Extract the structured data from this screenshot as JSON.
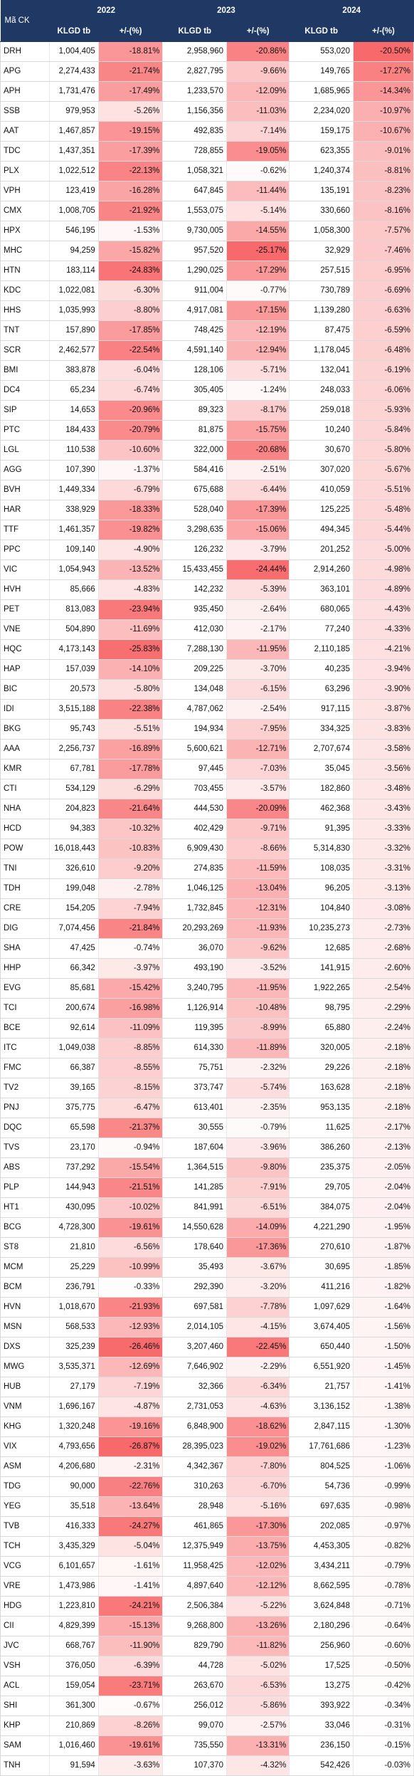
{
  "header": {
    "code_label": "Mã CK",
    "years": [
      "2022",
      "2023",
      "2024"
    ],
    "vol_label": "KLGD tb",
    "chg_label": "+/-(%)"
  },
  "heat": {
    "low": "#ffffff",
    "high": "#f8696b"
  },
  "rows": [
    [
      "DRH",
      "1,004,405",
      "-18.81%",
      "2,958,960",
      "-20.86%",
      "553,020",
      "-20.50%"
    ],
    [
      "APG",
      "2,274,433",
      "-21.74%",
      "2,827,795",
      "-9.66%",
      "149,765",
      "-17.27%"
    ],
    [
      "APH",
      "1,731,476",
      "-17.49%",
      "1,233,570",
      "-12.09%",
      "1,685,965",
      "-14.34%"
    ],
    [
      "SSB",
      "979,953",
      "-5.26%",
      "1,156,356",
      "-11.03%",
      "2,234,020",
      "-10.97%"
    ],
    [
      "AAT",
      "1,467,857",
      "-19.15%",
      "492,835",
      "-7.14%",
      "159,175",
      "-10.67%"
    ],
    [
      "TDC",
      "1,437,351",
      "-17.39%",
      "728,855",
      "-19.05%",
      "623,355",
      "-9.01%"
    ],
    [
      "PLX",
      "1,022,512",
      "-22.13%",
      "1,058,321",
      "-0.62%",
      "1,240,374",
      "-8.81%"
    ],
    [
      "VPH",
      "123,419",
      "-16.28%",
      "647,845",
      "-11.44%",
      "135,191",
      "-8.23%"
    ],
    [
      "CMX",
      "1,008,705",
      "-21.92%",
      "1,553,075",
      "-5.14%",
      "330,660",
      "-8.16%"
    ],
    [
      "HPX",
      "546,195",
      "-1.53%",
      "9,730,005",
      "-14.55%",
      "1,058,300",
      "-7.57%"
    ],
    [
      "MHC",
      "94,259",
      "-15.82%",
      "957,520",
      "-25.17%",
      "32,929",
      "-7.46%"
    ],
    [
      "HTN",
      "183,114",
      "-24.83%",
      "1,290,025",
      "-17.29%",
      "257,515",
      "-6.95%"
    ],
    [
      "KDC",
      "1,022,081",
      "-6.30%",
      "911,004",
      "-0.77%",
      "730,789",
      "-6.69%"
    ],
    [
      "HHS",
      "1,035,993",
      "-8.80%",
      "4,917,081",
      "-17.15%",
      "1,139,280",
      "-6.63%"
    ],
    [
      "TNT",
      "157,890",
      "-17.85%",
      "748,425",
      "-12.19%",
      "87,475",
      "-6.59%"
    ],
    [
      "SCR",
      "2,462,577",
      "-22.54%",
      "4,591,140",
      "-12.94%",
      "1,178,045",
      "-6.48%"
    ],
    [
      "BMI",
      "383,878",
      "-6.04%",
      "128,106",
      "-5.71%",
      "132,041",
      "-6.19%"
    ],
    [
      "DC4",
      "65,234",
      "-6.74%",
      "305,405",
      "-1.24%",
      "248,033",
      "-6.06%"
    ],
    [
      "SIP",
      "14,653",
      "-20.96%",
      "89,323",
      "-8.17%",
      "259,018",
      "-5.93%"
    ],
    [
      "PTC",
      "184,433",
      "-20.79%",
      "81,875",
      "-15.75%",
      "10,240",
      "-5.84%"
    ],
    [
      "LGL",
      "110,538",
      "-10.60%",
      "322,000",
      "-20.68%",
      "30,670",
      "-5.80%"
    ],
    [
      "AGG",
      "107,390",
      "-1.37%",
      "584,416",
      "-2.51%",
      "307,020",
      "-5.67%"
    ],
    [
      "BVH",
      "1,449,334",
      "-6.79%",
      "675,688",
      "-6.44%",
      "410,059",
      "-5.51%"
    ],
    [
      "HAR",
      "338,929",
      "-18.33%",
      "528,040",
      "-17.39%",
      "125,225",
      "-5.48%"
    ],
    [
      "TTF",
      "1,461,357",
      "-19.82%",
      "3,298,635",
      "-15.06%",
      "494,345",
      "-5.44%"
    ],
    [
      "PPC",
      "109,140",
      "-4.90%",
      "126,232",
      "-3.79%",
      "201,252",
      "-5.00%"
    ],
    [
      "VIC",
      "1,054,943",
      "-13.52%",
      "15,433,455",
      "-24.44%",
      "2,914,260",
      "-4.98%"
    ],
    [
      "HVH",
      "85,666",
      "-4.83%",
      "142,232",
      "-5.39%",
      "363,101",
      "-4.89%"
    ],
    [
      "PET",
      "813,083",
      "-23.94%",
      "935,450",
      "-2.64%",
      "680,065",
      "-4.43%"
    ],
    [
      "VNE",
      "504,890",
      "-11.69%",
      "412,030",
      "-2.17%",
      "77,240",
      "-4.33%"
    ],
    [
      "HQC",
      "4,173,143",
      "-25.83%",
      "7,288,130",
      "-11.95%",
      "2,110,185",
      "-4.21%"
    ],
    [
      "HAP",
      "157,039",
      "-14.10%",
      "209,225",
      "-3.70%",
      "40,235",
      "-3.94%"
    ],
    [
      "BIC",
      "20,573",
      "-5.80%",
      "134,048",
      "-6.15%",
      "63,296",
      "-3.90%"
    ],
    [
      "IDI",
      "3,515,188",
      "-22.38%",
      "4,787,062",
      "-2.54%",
      "917,115",
      "-3.87%"
    ],
    [
      "BKG",
      "95,743",
      "-5.51%",
      "194,934",
      "-7.95%",
      "334,325",
      "-3.83%"
    ],
    [
      "AAA",
      "2,256,737",
      "-16.89%",
      "5,600,621",
      "-12.71%",
      "2,707,674",
      "-3.58%"
    ],
    [
      "KMR",
      "67,781",
      "-17.78%",
      "97,445",
      "-7.03%",
      "35,045",
      "-3.56%"
    ],
    [
      "CTI",
      "534,129",
      "-6.29%",
      "703,455",
      "-3.57%",
      "182,860",
      "-3.48%"
    ],
    [
      "NHA",
      "204,823",
      "-21.64%",
      "444,530",
      "-20.09%",
      "462,368",
      "-3.43%"
    ],
    [
      "HCD",
      "94,383",
      "-10.32%",
      "402,429",
      "-9.71%",
      "91,395",
      "-3.33%"
    ],
    [
      "POW",
      "16,018,443",
      "-10.83%",
      "6,909,430",
      "-8.66%",
      "5,314,830",
      "-3.32%"
    ],
    [
      "TNI",
      "326,610",
      "-9.20%",
      "274,835",
      "-11.59%",
      "108,035",
      "-3.31%"
    ],
    [
      "TDH",
      "199,048",
      "-2.78%",
      "1,046,125",
      "-13.04%",
      "96,205",
      "-3.13%"
    ],
    [
      "CRE",
      "154,205",
      "-7.94%",
      "1,732,845",
      "-12.31%",
      "104,840",
      "-3.08%"
    ],
    [
      "DIG",
      "7,074,456",
      "-21.84%",
      "20,293,269",
      "-11.93%",
      "10,235,273",
      "-2.73%"
    ],
    [
      "SHA",
      "47,425",
      "-0.74%",
      "36,070",
      "-9.62%",
      "12,685",
      "-2.68%"
    ],
    [
      "HHP",
      "66,342",
      "-3.97%",
      "493,190",
      "-3.52%",
      "141,915",
      "-2.60%"
    ],
    [
      "EVG",
      "85,681",
      "-15.42%",
      "3,240,795",
      "-11.95%",
      "1,922,265",
      "-2.54%"
    ],
    [
      "TCI",
      "200,674",
      "-16.98%",
      "1,126,914",
      "-10.48%",
      "98,795",
      "-2.29%"
    ],
    [
      "BCE",
      "92,614",
      "-11.09%",
      "119,395",
      "-8.99%",
      "65,880",
      "-2.24%"
    ],
    [
      "ITC",
      "1,049,038",
      "-8.85%",
      "614,330",
      "-11.89%",
      "320,005",
      "-2.18%"
    ],
    [
      "FMC",
      "66,387",
      "-8.55%",
      "75,751",
      "-2.32%",
      "29,226",
      "-2.18%"
    ],
    [
      "TV2",
      "39,165",
      "-8.15%",
      "373,747",
      "-5.74%",
      "163,628",
      "-2.18%"
    ],
    [
      "PNJ",
      "375,775",
      "-6.47%",
      "613,401",
      "-2.35%",
      "953,135",
      "-2.18%"
    ],
    [
      "DQC",
      "65,598",
      "-21.37%",
      "30,555",
      "-0.79%",
      "11,625",
      "-2.17%"
    ],
    [
      "TVS",
      "23,170",
      "-0.94%",
      "187,604",
      "-3.96%",
      "386,260",
      "-2.13%"
    ],
    [
      "ABS",
      "737,292",
      "-15.54%",
      "1,364,515",
      "-9.80%",
      "235,375",
      "-2.05%"
    ],
    [
      "PLP",
      "144,943",
      "-21.51%",
      "141,285",
      "-7.91%",
      "29,705",
      "-2.04%"
    ],
    [
      "HT1",
      "430,095",
      "-10.02%",
      "841,991",
      "-6.51%",
      "384,075",
      "-2.04%"
    ],
    [
      "BCG",
      "4,728,300",
      "-19.61%",
      "14,550,628",
      "-14.09%",
      "4,221,290",
      "-1.95%"
    ],
    [
      "ST8",
      "21,810",
      "-6.56%",
      "178,640",
      "-17.36%",
      "270,610",
      "-1.87%"
    ],
    [
      "MCM",
      "25,229",
      "-10.99%",
      "35,493",
      "-3.67%",
      "30,695",
      "-1.85%"
    ],
    [
      "BCM",
      "236,791",
      "-0.33%",
      "292,390",
      "-3.20%",
      "411,216",
      "-1.82%"
    ],
    [
      "HVN",
      "1,018,670",
      "-21.93%",
      "697,581",
      "-7.78%",
      "1,097,629",
      "-1.64%"
    ],
    [
      "MSN",
      "568,533",
      "-12.93%",
      "2,014,105",
      "-4.15%",
      "3,674,405",
      "-1.56%"
    ],
    [
      "DXS",
      "325,239",
      "-26.46%",
      "3,207,460",
      "-22.45%",
      "650,440",
      "-1.50%"
    ],
    [
      "MWG",
      "3,535,371",
      "-12.69%",
      "7,646,902",
      "-2.29%",
      "6,551,920",
      "-1.45%"
    ],
    [
      "HUB",
      "27,179",
      "-7.19%",
      "32,366",
      "-6.34%",
      "21,757",
      "-1.41%"
    ],
    [
      "VNM",
      "1,696,167",
      "-4.87%",
      "2,731,053",
      "-4.63%",
      "3,136,152",
      "-1.38%"
    ],
    [
      "KHG",
      "1,320,248",
      "-19.16%",
      "6,848,900",
      "-18.62%",
      "2,847,115",
      "-1.30%"
    ],
    [
      "VIX",
      "4,793,656",
      "-26.87%",
      "28,395,023",
      "-19.02%",
      "17,761,686",
      "-1.23%"
    ],
    [
      "ASM",
      "4,206,680",
      "-2.31%",
      "4,342,367",
      "-7.80%",
      "804,525",
      "-1.06%"
    ],
    [
      "TDG",
      "90,000",
      "-22.76%",
      "310,263",
      "-6.70%",
      "54,736",
      "-0.99%"
    ],
    [
      "YEG",
      "35,518",
      "-13.64%",
      "28,948",
      "-5.16%",
      "697,635",
      "-0.98%"
    ],
    [
      "TVB",
      "416,333",
      "-24.27%",
      "461,865",
      "-17.30%",
      "202,085",
      "-0.97%"
    ],
    [
      "TCH",
      "3,435,329",
      "-5.04%",
      "12,375,949",
      "-13.75%",
      "4,453,305",
      "-0.82%"
    ],
    [
      "VCG",
      "6,101,657",
      "-1.61%",
      "11,958,425",
      "-12.02%",
      "3,434,211",
      "-0.79%"
    ],
    [
      "VRE",
      "1,473,986",
      "-1.41%",
      "4,897,640",
      "-12.12%",
      "8,662,595",
      "-0.78%"
    ],
    [
      "HDG",
      "1,223,810",
      "-24.21%",
      "2,506,384",
      "-5.22%",
      "3,624,848",
      "-0.71%"
    ],
    [
      "CII",
      "4,829,399",
      "-15.13%",
      "9,268,800",
      "-13.26%",
      "2,180,296",
      "-0.64%"
    ],
    [
      "JVC",
      "668,767",
      "-11.90%",
      "829,790",
      "-11.82%",
      "256,960",
      "-0.60%"
    ],
    [
      "VSH",
      "376,050",
      "-6.39%",
      "44,728",
      "-5.02%",
      "17,525",
      "-0.50%"
    ],
    [
      "ACL",
      "159,054",
      "-23.71%",
      "263,670",
      "-6.53%",
      "13,275",
      "-0.42%"
    ],
    [
      "SHI",
      "361,300",
      "-0.67%",
      "256,012",
      "-5.86%",
      "393,922",
      "-0.34%"
    ],
    [
      "KHP",
      "210,869",
      "-8.26%",
      "99,070",
      "-2.57%",
      "33,046",
      "-0.31%"
    ],
    [
      "SAM",
      "1,016,460",
      "-19.61%",
      "735,550",
      "-13.31%",
      "236,150",
      "-0.15%"
    ],
    [
      "TNH",
      "91,594",
      "-3.63%",
      "107,370",
      "-4.32%",
      "542,426",
      "-0.03%"
    ]
  ]
}
